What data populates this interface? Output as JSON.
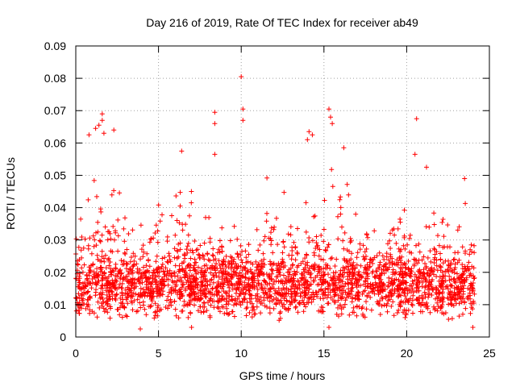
{
  "chart_data": {
    "type": "scatter",
    "title": "Day 216 of 2019, Rate Of TEC Index for receiver ab49",
    "xlabel": "GPS time / hours",
    "ylabel": "ROTI / TECUs",
    "xlim": [
      0,
      25
    ],
    "ylim": [
      0,
      0.09
    ],
    "xticks": [
      "0",
      "5",
      "10",
      "15",
      "20",
      "25"
    ],
    "yticks": [
      "0",
      "0.01",
      "0.02",
      "0.03",
      "0.04",
      "0.05",
      "0.06",
      "0.07",
      "0.08",
      "0.09"
    ],
    "grid": true,
    "marker": "plus",
    "color": "#ff0000",
    "point_count": 2600,
    "point_density_note": "dense continuous scatter 0-24 h; bulk 0.005-0.025, frequent spikes to 0.03-0.05",
    "notable_points": [
      {
        "x": 10.0,
        "y": 0.0805
      },
      {
        "x": 10.1,
        "y": 0.0705
      },
      {
        "x": 10.1,
        "y": 0.067
      },
      {
        "x": 8.4,
        "y": 0.0695
      },
      {
        "x": 8.4,
        "y": 0.066
      },
      {
        "x": 15.3,
        "y": 0.0705
      },
      {
        "x": 15.4,
        "y": 0.068
      },
      {
        "x": 15.5,
        "y": 0.066
      },
      {
        "x": 20.6,
        "y": 0.0675
      },
      {
        "x": 1.6,
        "y": 0.069
      },
      {
        "x": 1.6,
        "y": 0.067
      },
      {
        "x": 1.4,
        "y": 0.0655
      },
      {
        "x": 1.2,
        "y": 0.0645
      },
      {
        "x": 1.7,
        "y": 0.063
      },
      {
        "x": 0.8,
        "y": 0.0625
      },
      {
        "x": 2.3,
        "y": 0.064
      },
      {
        "x": 14.1,
        "y": 0.0635
      },
      {
        "x": 14.3,
        "y": 0.0625
      },
      {
        "x": 14.0,
        "y": 0.061
      },
      {
        "x": 6.4,
        "y": 0.0575
      },
      {
        "x": 8.4,
        "y": 0.0565
      },
      {
        "x": 20.5,
        "y": 0.0565
      },
      {
        "x": 16.2,
        "y": 0.0585
      },
      {
        "x": 21.2,
        "y": 0.0525
      },
      {
        "x": 23.5,
        "y": 0.049
      },
      {
        "x": 3.9,
        "y": 0.0025
      },
      {
        "x": 15.3,
        "y": 0.003
      },
      {
        "x": 7.0,
        "y": 0.003
      },
      {
        "x": 24.0,
        "y": 0.003
      }
    ]
  }
}
